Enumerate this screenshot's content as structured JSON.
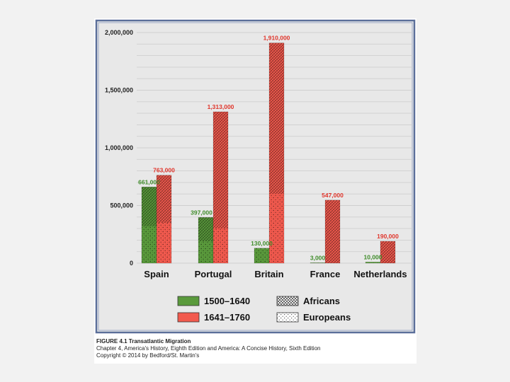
{
  "chart_data": {
    "type": "bar",
    "title": "",
    "xlabel": "",
    "ylabel": "",
    "ylim": [
      0,
      2000000
    ],
    "yticks": [
      0,
      500000,
      1000000,
      1500000,
      2000000
    ],
    "ytick_labels": [
      "0",
      "500,000",
      "1,000,000",
      "1,500,000",
      "2,000,000"
    ],
    "grid": true,
    "categories": [
      "Spain",
      "Portugal",
      "Britain",
      "France",
      "Netherlands"
    ],
    "series": [
      {
        "name": "1500–1640",
        "color": "#5a9a3c",
        "values": [
          661000,
          397000,
          130000,
          3000,
          10000
        ],
        "labels": [
          "661,000",
          "397,000",
          "130,000",
          "3,000",
          "10,000"
        ],
        "africans": [
          341000,
          207000,
          0,
          0,
          0
        ],
        "europeans": [
          320000,
          190000,
          130000,
          3000,
          10000
        ]
      },
      {
        "name": "1641–1760",
        "color": "#f25a4e",
        "values": [
          763000,
          1313000,
          1910000,
          547000,
          190000
        ],
        "labels": [
          "763,000",
          "1,313,000",
          "1,910,000",
          "547,000",
          "190,000"
        ],
        "africans": [
          413000,
          1013000,
          1310000,
          547000,
          190000
        ],
        "europeans": [
          350000,
          300000,
          600000,
          0,
          0
        ]
      }
    ],
    "legend": {
      "placement": "bottom",
      "items": [
        {
          "label": "1500–1640",
          "kind": "color",
          "color": "#5a9a3c"
        },
        {
          "label": "Africans",
          "kind": "pattern",
          "pattern": "crosshatch"
        },
        {
          "label": "1641–1760",
          "kind": "color",
          "color": "#f25a4e"
        },
        {
          "label": "Europeans",
          "kind": "pattern",
          "pattern": "dots"
        }
      ]
    },
    "colors": {
      "label_green": "#3f8c2a",
      "label_red": "#e0352b",
      "frame": "#5b6f9a",
      "grid": "#cfcfcf"
    }
  },
  "caption": {
    "title": "FIGURE 4.1 Transatlantic Migration",
    "line2": "Chapter 4, America's History, Eighth Edition and America: A Concise History, Sixth Edition",
    "line3": "Copyright © 2014 by Bedford/St. Martin's"
  }
}
